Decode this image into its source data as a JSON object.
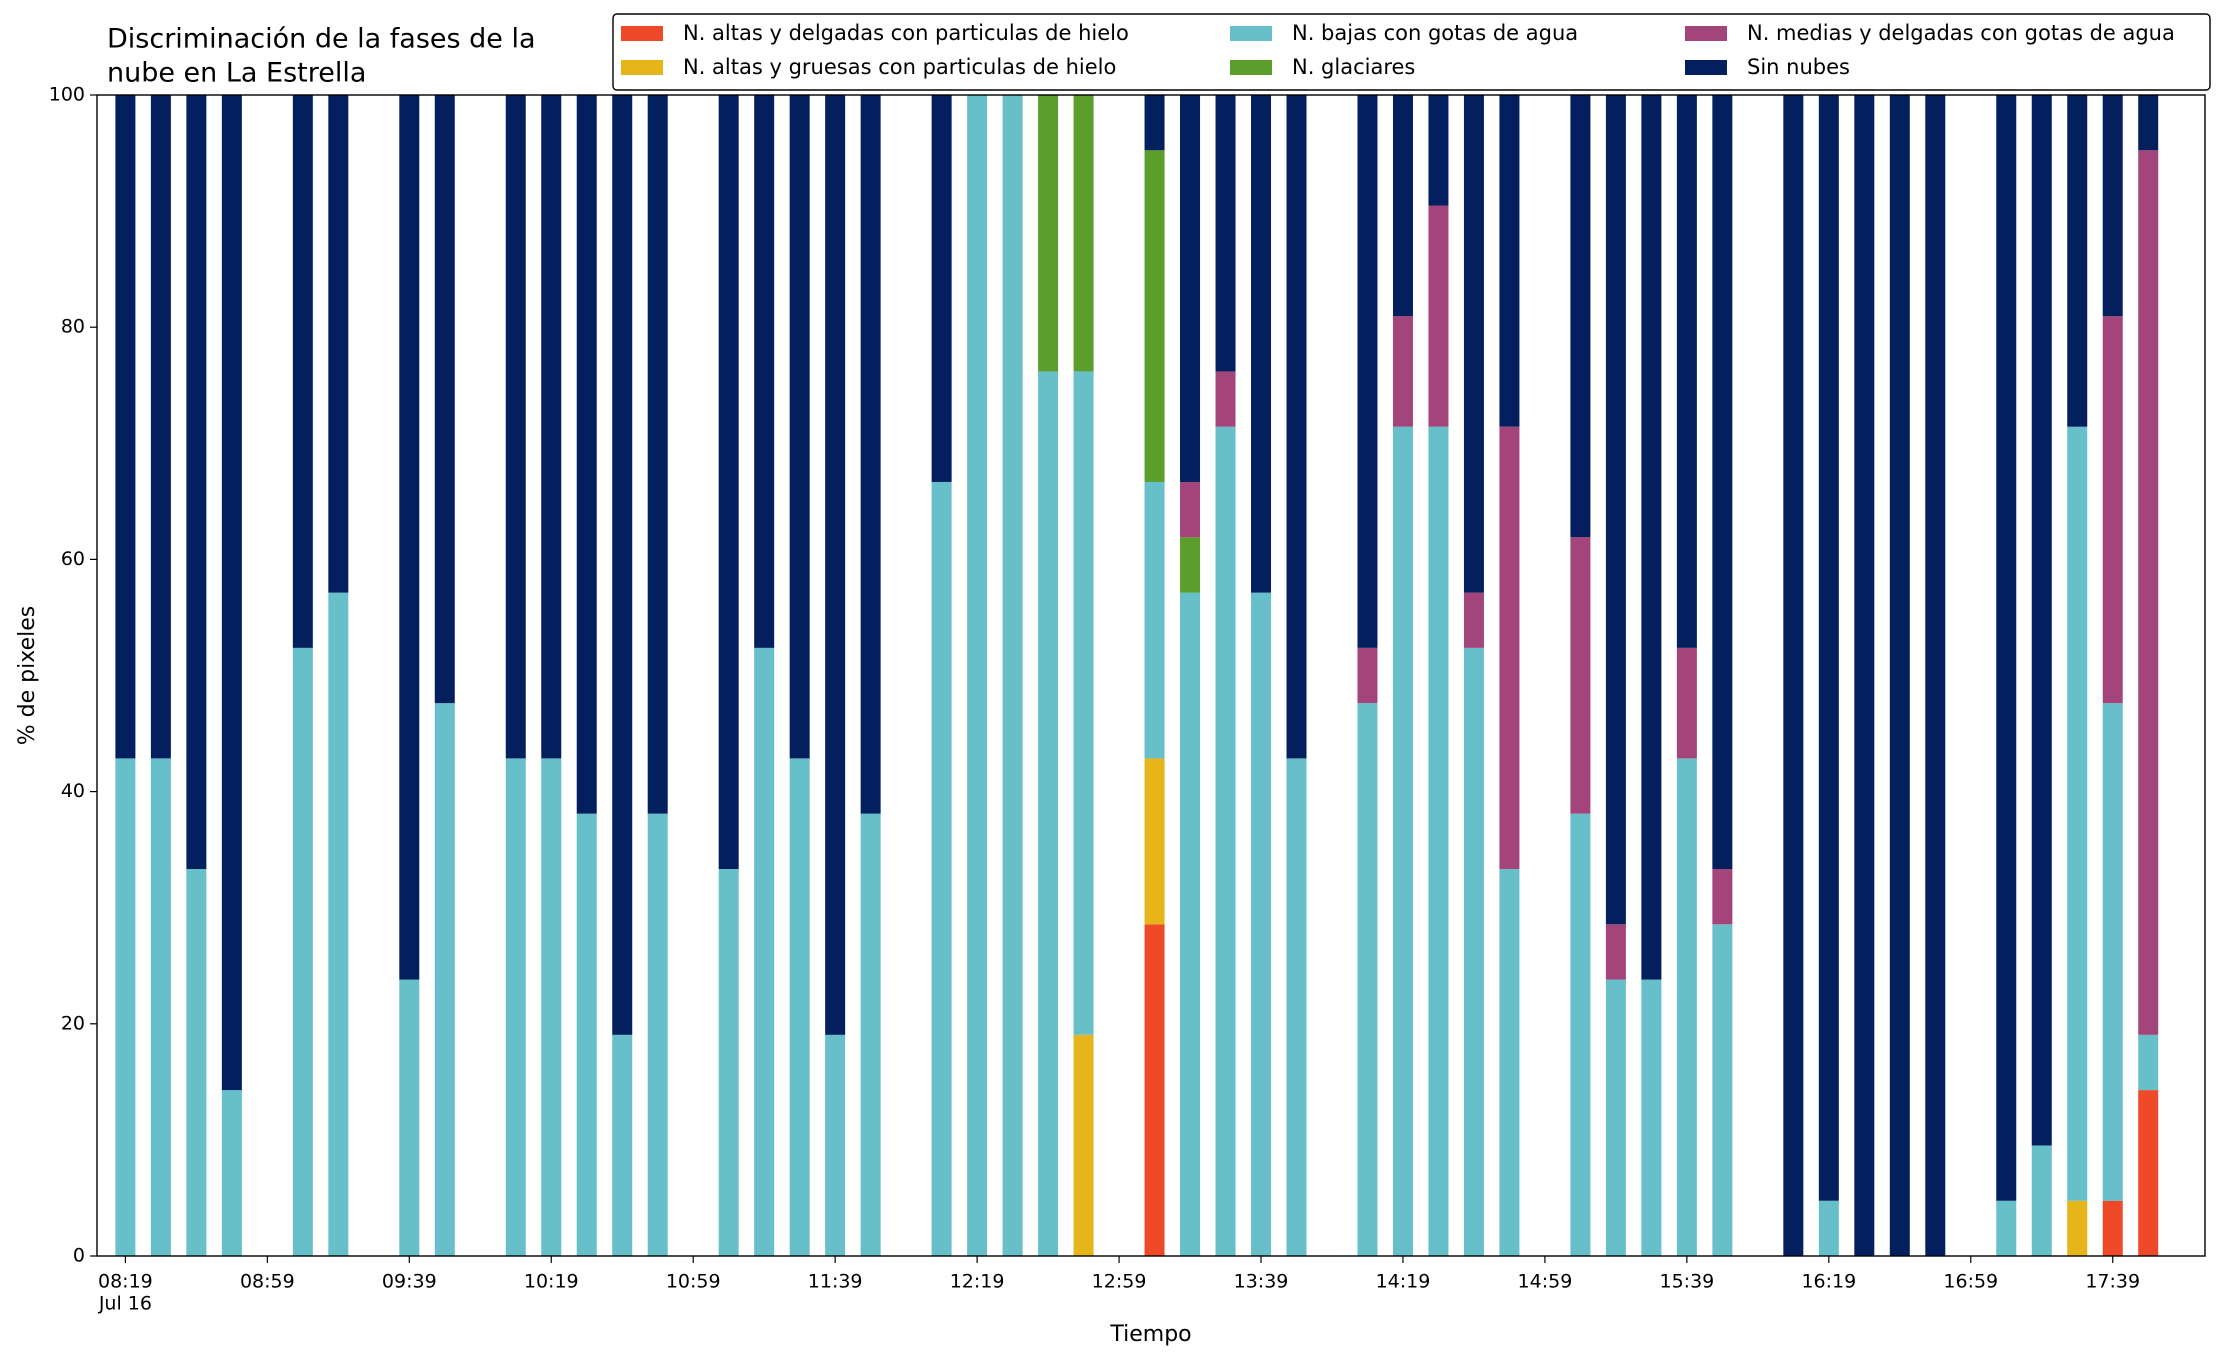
{
  "chart_data": {
    "type": "stacked_bar",
    "title_lines": [
      "Discriminación de la fases de la",
      "nube en La Estrella"
    ],
    "xlabel": "Tiempo",
    "ylabel": "% de pixeles",
    "x": [
      "08:19",
      "08:29",
      "08:39",
      "08:49",
      "09:09",
      "09:19",
      "09:39",
      "09:49",
      "10:09",
      "10:19",
      "10:29",
      "10:39",
      "10:49",
      "11:09",
      "11:19",
      "11:29",
      "11:39",
      "11:49",
      "12:09",
      "12:19",
      "12:29",
      "12:39",
      "12:49",
      "13:09",
      "13:19",
      "13:29",
      "13:39",
      "13:49",
      "14:09",
      "14:19",
      "14:29",
      "14:39",
      "14:49",
      "15:09",
      "15:19",
      "15:29",
      "15:39",
      "15:49",
      "16:09",
      "16:19",
      "16:29",
      "16:39",
      "16:49",
      "17:09",
      "17:19",
      "17:29",
      "17:39",
      "17:49"
    ],
    "xlim": [
      "08:11",
      "18:05"
    ],
    "xticks": [
      "08:19",
      "08:59",
      "09:39",
      "10:19",
      "10:59",
      "11:39",
      "12:19",
      "12:59",
      "13:39",
      "14:19",
      "14:59",
      "15:39",
      "16:19",
      "16:59",
      "17:39"
    ],
    "xtick_date": "Jul 16",
    "ylim": [
      0,
      100
    ],
    "yticks": [
      0,
      20,
      40,
      60,
      80,
      100
    ],
    "series": [
      {
        "name": "N. altas y delgadas con particulas de hielo",
        "color": "#ee4a2a",
        "values": [
          0,
          0,
          0,
          0,
          0,
          0,
          0,
          0,
          0,
          0,
          0,
          0,
          0,
          0,
          0,
          0,
          0,
          0,
          0,
          0,
          0,
          0,
          0,
          28.57,
          0,
          0,
          0,
          0,
          0,
          0,
          0,
          0,
          0,
          0,
          0,
          0,
          0,
          0,
          0,
          0,
          0,
          0,
          0,
          0,
          0,
          0,
          4.76,
          14.29
        ]
      },
      {
        "name": "N. altas y gruesas con particulas de hielo",
        "color": "#e5b51a",
        "values": [
          0,
          0,
          0,
          0,
          0,
          0,
          0,
          0,
          0,
          0,
          0,
          0,
          0,
          0,
          0,
          0,
          0,
          0,
          0,
          0,
          0,
          0,
          19.05,
          14.29,
          0,
          0,
          0,
          0,
          0,
          0,
          0,
          0,
          0,
          0,
          0,
          0,
          0,
          0,
          0,
          0,
          0,
          0,
          0,
          0,
          0,
          4.76,
          0,
          0
        ]
      },
      {
        "name": "N. bajas con gotas de agua",
        "color": "#66bfc9",
        "values": [
          42.86,
          42.86,
          33.33,
          14.29,
          52.38,
          57.14,
          23.81,
          47.62,
          42.86,
          42.86,
          38.1,
          19.05,
          38.1,
          33.33,
          52.38,
          42.86,
          19.05,
          38.1,
          66.67,
          100,
          100,
          76.19,
          57.14,
          23.81,
          57.14,
          71.43,
          57.14,
          42.86,
          47.62,
          71.43,
          71.43,
          52.38,
          33.33,
          38.1,
          23.81,
          23.81,
          42.86,
          28.57,
          0,
          4.76,
          0,
          0,
          0,
          4.76,
          9.52,
          66.67,
          42.86,
          4.76
        ]
      },
      {
        "name": "N. glaciares",
        "color": "#5c9e2c",
        "values": [
          0,
          0,
          0,
          0,
          0,
          0,
          0,
          0,
          0,
          0,
          0,
          0,
          0,
          0,
          0,
          0,
          0,
          0,
          0,
          0,
          0,
          23.81,
          23.81,
          28.57,
          4.76,
          0,
          0,
          0,
          0,
          0,
          0,
          0,
          0,
          0,
          0,
          0,
          0,
          0,
          0,
          0,
          0,
          0,
          0,
          0,
          0,
          0,
          0,
          0
        ]
      },
      {
        "name": "N. medias y delgadas con gotas de agua",
        "color": "#a3457a",
        "values": [
          0,
          0,
          0,
          0,
          0,
          0,
          0,
          0,
          0,
          0,
          0,
          0,
          0,
          0,
          0,
          0,
          0,
          0,
          0,
          0,
          0,
          0,
          0,
          0,
          4.76,
          4.76,
          0,
          0,
          4.76,
          9.52,
          19.05,
          4.76,
          38.1,
          23.81,
          4.76,
          0,
          9.52,
          4.76,
          0,
          0,
          0,
          0,
          0,
          0,
          0,
          0,
          33.33,
          76.19
        ]
      },
      {
        "name": "Sin nubes",
        "color": "#041f5e",
        "values": [
          57.14,
          57.14,
          66.67,
          85.71,
          47.62,
          42.86,
          76.19,
          52.38,
          57.14,
          57.14,
          61.9,
          80.95,
          61.9,
          66.67,
          47.62,
          57.14,
          80.95,
          61.9,
          33.33,
          0,
          0,
          0,
          0,
          4.76,
          33.33,
          23.81,
          42.86,
          57.14,
          47.62,
          19.05,
          9.52,
          42.86,
          28.57,
          38.1,
          71.43,
          76.19,
          47.62,
          66.67,
          100,
          95.24,
          100,
          100,
          100,
          95.24,
          90.48,
          28.57,
          19.05,
          4.76
        ]
      }
    ]
  }
}
